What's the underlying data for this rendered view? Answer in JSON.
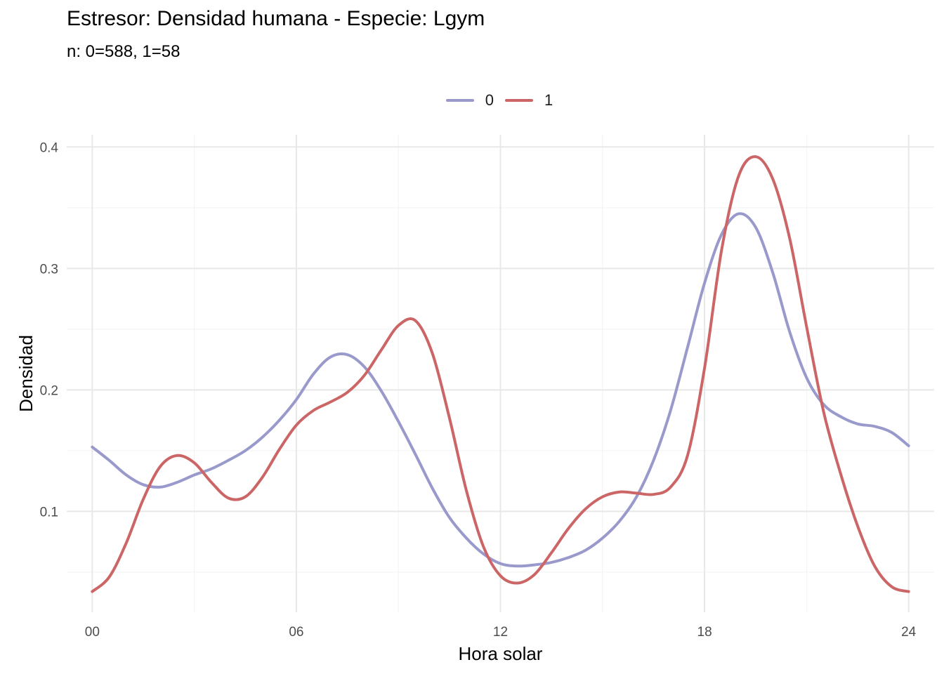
{
  "chart_data": {
    "type": "line",
    "title": "Estresor: Densidad humana - Especie:  Lgym",
    "subtitle": "n:  0=588, 1=58",
    "xlabel": "Hora solar",
    "ylabel": "Densidad",
    "xlim": [
      -0.75,
      24.75
    ],
    "ylim": [
      0.017,
      0.41
    ],
    "x_ticks": [
      0,
      6,
      12,
      18,
      24
    ],
    "x_tick_labels": [
      "00",
      "06",
      "12",
      "18",
      "24"
    ],
    "y_ticks": [
      0.1,
      0.2,
      0.3,
      0.4
    ],
    "y_tick_labels": [
      "0.1",
      "0.2",
      "0.3",
      "0.4"
    ],
    "grid": true,
    "legend_position": "top",
    "series": [
      {
        "name": "0",
        "color": "#9999cc",
        "points": [
          [
            0,
            0.153
          ],
          [
            0.5,
            0.142
          ],
          [
            1,
            0.13
          ],
          [
            1.5,
            0.122
          ],
          [
            2,
            0.12
          ],
          [
            2.5,
            0.124
          ],
          [
            3,
            0.13
          ],
          [
            3.5,
            0.135
          ],
          [
            4,
            0.142
          ],
          [
            4.5,
            0.15
          ],
          [
            5,
            0.161
          ],
          [
            5.5,
            0.175
          ],
          [
            6,
            0.192
          ],
          [
            6.5,
            0.213
          ],
          [
            7,
            0.227
          ],
          [
            7.5,
            0.229
          ],
          [
            8,
            0.219
          ],
          [
            8.5,
            0.199
          ],
          [
            9,
            0.174
          ],
          [
            9.5,
            0.147
          ],
          [
            10,
            0.119
          ],
          [
            10.5,
            0.095
          ],
          [
            11,
            0.078
          ],
          [
            11.5,
            0.065
          ],
          [
            12,
            0.057
          ],
          [
            12.5,
            0.055
          ],
          [
            13,
            0.056
          ],
          [
            13.5,
            0.058
          ],
          [
            14,
            0.062
          ],
          [
            14.5,
            0.068
          ],
          [
            15,
            0.078
          ],
          [
            15.5,
            0.092
          ],
          [
            16,
            0.112
          ],
          [
            16.5,
            0.142
          ],
          [
            17,
            0.183
          ],
          [
            17.5,
            0.235
          ],
          [
            18,
            0.288
          ],
          [
            18.5,
            0.328
          ],
          [
            19,
            0.345
          ],
          [
            19.5,
            0.334
          ],
          [
            20,
            0.297
          ],
          [
            20.5,
            0.248
          ],
          [
            21,
            0.21
          ],
          [
            21.5,
            0.188
          ],
          [
            22,
            0.178
          ],
          [
            22.5,
            0.172
          ],
          [
            23,
            0.17
          ],
          [
            23.5,
            0.165
          ],
          [
            24,
            0.154
          ]
        ]
      },
      {
        "name": "1",
        "color": "#cc6666",
        "points": [
          [
            0,
            0.034
          ],
          [
            0.5,
            0.046
          ],
          [
            1,
            0.074
          ],
          [
            1.5,
            0.11
          ],
          [
            2,
            0.137
          ],
          [
            2.5,
            0.146
          ],
          [
            3,
            0.14
          ],
          [
            3.5,
            0.124
          ],
          [
            4,
            0.111
          ],
          [
            4.5,
            0.112
          ],
          [
            5,
            0.128
          ],
          [
            5.5,
            0.151
          ],
          [
            6,
            0.171
          ],
          [
            6.5,
            0.183
          ],
          [
            7,
            0.19
          ],
          [
            7.5,
            0.198
          ],
          [
            8,
            0.212
          ],
          [
            8.5,
            0.233
          ],
          [
            9,
            0.253
          ],
          [
            9.5,
            0.257
          ],
          [
            10,
            0.23
          ],
          [
            10.5,
            0.177
          ],
          [
            11,
            0.117
          ],
          [
            11.5,
            0.071
          ],
          [
            12,
            0.047
          ],
          [
            12.5,
            0.041
          ],
          [
            13,
            0.048
          ],
          [
            13.5,
            0.066
          ],
          [
            14,
            0.086
          ],
          [
            14.5,
            0.102
          ],
          [
            15,
            0.112
          ],
          [
            15.5,
            0.116
          ],
          [
            16,
            0.115
          ],
          [
            16.5,
            0.114
          ],
          [
            17,
            0.12
          ],
          [
            17.5,
            0.146
          ],
          [
            18,
            0.218
          ],
          [
            18.5,
            0.315
          ],
          [
            19,
            0.376
          ],
          [
            19.5,
            0.392
          ],
          [
            20,
            0.374
          ],
          [
            20.5,
            0.325
          ],
          [
            21,
            0.252
          ],
          [
            21.5,
            0.182
          ],
          [
            22,
            0.131
          ],
          [
            22.5,
            0.088
          ],
          [
            23,
            0.055
          ],
          [
            23.5,
            0.038
          ],
          [
            24,
            0.034
          ]
        ]
      }
    ]
  }
}
